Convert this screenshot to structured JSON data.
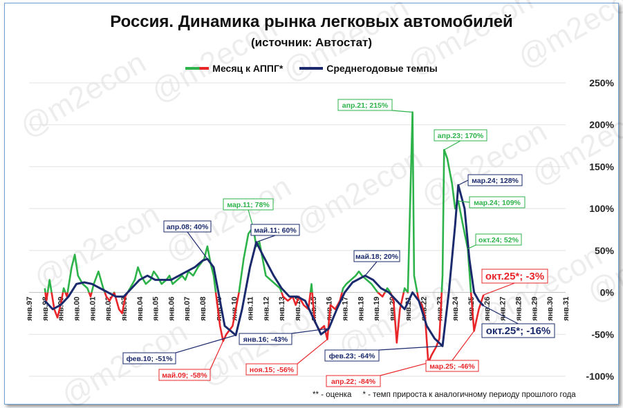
{
  "title": "Россия. Динамика рынка легковых автомобилей",
  "subtitle": "(источник: Автостат)",
  "watermark": "@m2econ",
  "legend": [
    {
      "label": "Месяц к АППГ*",
      "color": "#2db34a"
    },
    {
      "label": "Среднегодовые темпы",
      "color": "#1a2a6c"
    }
  ],
  "footnote": {
    "estimate": "** - оценка",
    "growth": "* - темп прироста к аналогичному периоду прошлого года"
  },
  "colors": {
    "monthly_pos": "#2db34a",
    "monthly_neg": "#e8262a",
    "average": "#1a2a6c"
  },
  "chart_data": {
    "type": "line",
    "ylim": [
      -100,
      250
    ],
    "yticks": [
      "-100%",
      "-50%",
      "0%",
      "50%",
      "100%",
      "150%",
      "200%",
      "250%"
    ],
    "ytick_values": [
      -100,
      -50,
      0,
      50,
      100,
      150,
      200,
      250
    ],
    "xticks": [
      "янв.97",
      "янв.98",
      "янв.99",
      "янв.00",
      "янв.01",
      "янв.02",
      "янв.03",
      "янв.04",
      "янв.05",
      "янв.06",
      "янв.07",
      "янв.08",
      "янв.09",
      "янв.10",
      "янв.11",
      "янв.12",
      "янв.13",
      "янв.14",
      "янв.15",
      "янв.16",
      "янв.17",
      "янв.18",
      "янв.19",
      "янв.20",
      "янв.21",
      "янв.22",
      "янв.23",
      "янв.24",
      "янв.25",
      "янв.26",
      "янв.27",
      "янв.28",
      "янв.29",
      "янв.30",
      "янв.31"
    ],
    "x_start": 1997,
    "x_end": 2031,
    "series": [
      {
        "name": "Месяц к АППГ*",
        "points": [
          [
            1998.0,
            5
          ],
          [
            1998.1,
            -10
          ],
          [
            1998.3,
            15
          ],
          [
            1998.6,
            -20
          ],
          [
            1998.8,
            -30
          ],
          [
            1999.0,
            -15
          ],
          [
            1999.2,
            5
          ],
          [
            1999.4,
            -5
          ],
          [
            1999.7,
            30
          ],
          [
            1999.9,
            45
          ],
          [
            2000.1,
            20
          ],
          [
            2000.4,
            10
          ],
          [
            2000.7,
            5
          ],
          [
            2000.9,
            -5
          ],
          [
            2001.1,
            10
          ],
          [
            2001.4,
            25
          ],
          [
            2001.7,
            5
          ],
          [
            2001.9,
            -5
          ],
          [
            2002.1,
            -10
          ],
          [
            2002.4,
            0
          ],
          [
            2002.7,
            -20
          ],
          [
            2002.9,
            -25
          ],
          [
            2003.1,
            -5
          ],
          [
            2003.4,
            5
          ],
          [
            2003.7,
            15
          ],
          [
            2003.9,
            30
          ],
          [
            2004.1,
            20
          ],
          [
            2004.4,
            10
          ],
          [
            2004.7,
            15
          ],
          [
            2004.9,
            25
          ],
          [
            2005.1,
            20
          ],
          [
            2005.4,
            10
          ],
          [
            2005.7,
            15
          ],
          [
            2005.9,
            20
          ],
          [
            2006.1,
            10
          ],
          [
            2006.4,
            15
          ],
          [
            2006.7,
            20
          ],
          [
            2006.9,
            15
          ],
          [
            2007.1,
            25
          ],
          [
            2007.4,
            20
          ],
          [
            2007.7,
            30
          ],
          [
            2007.9,
            35
          ],
          [
            2008.1,
            40
          ],
          [
            2008.3,
            55
          ],
          [
            2008.5,
            35
          ],
          [
            2008.7,
            20
          ],
          [
            2008.9,
            -10
          ],
          [
            2009.1,
            -40
          ],
          [
            2009.3,
            -58
          ],
          [
            2009.5,
            -50
          ],
          [
            2009.7,
            -45
          ],
          [
            2009.9,
            -40
          ],
          [
            2010.1,
            -20
          ],
          [
            2010.3,
            0
          ],
          [
            2010.6,
            40
          ],
          [
            2010.9,
            70
          ],
          [
            2011.2,
            78
          ],
          [
            2011.4,
            55
          ],
          [
            2011.6,
            60
          ],
          [
            2011.8,
            40
          ],
          [
            2012.0,
            20
          ],
          [
            2012.3,
            15
          ],
          [
            2012.6,
            10
          ],
          [
            2012.9,
            5
          ],
          [
            2013.1,
            -5
          ],
          [
            2013.4,
            -10
          ],
          [
            2013.7,
            -5
          ],
          [
            2013.9,
            -15
          ],
          [
            2014.1,
            -5
          ],
          [
            2014.4,
            -15
          ],
          [
            2014.7,
            -20
          ],
          [
            2014.9,
            10
          ],
          [
            2015.1,
            -35
          ],
          [
            2015.4,
            -45
          ],
          [
            2015.7,
            -40
          ],
          [
            2015.9,
            -56
          ],
          [
            2016.1,
            -15
          ],
          [
            2016.4,
            -20
          ],
          [
            2016.7,
            -10
          ],
          [
            2016.9,
            5
          ],
          [
            2017.1,
            10
          ],
          [
            2017.4,
            15
          ],
          [
            2017.7,
            20
          ],
          [
            2017.9,
            25
          ],
          [
            2018.1,
            20
          ],
          [
            2018.4,
            15
          ],
          [
            2018.7,
            10
          ],
          [
            2018.9,
            5
          ],
          [
            2019.1,
            0
          ],
          [
            2019.4,
            -5
          ],
          [
            2019.7,
            5
          ],
          [
            2019.9,
            0
          ],
          [
            2020.1,
            -10
          ],
          [
            2020.3,
            -60
          ],
          [
            2020.5,
            -20
          ],
          [
            2020.8,
            5
          ],
          [
            2021.0,
            0
          ],
          [
            2021.3,
            215
          ],
          [
            2021.4,
            20
          ],
          [
            2021.7,
            -10
          ],
          [
            2021.9,
            -15
          ],
          [
            2022.1,
            -30
          ],
          [
            2022.3,
            -84
          ],
          [
            2022.5,
            -75
          ],
          [
            2022.8,
            -65
          ],
          [
            2023.0,
            -55
          ],
          [
            2023.2,
            20
          ],
          [
            2023.3,
            170
          ],
          [
            2023.5,
            160
          ],
          [
            2023.8,
            130
          ],
          [
            2024.0,
            100
          ],
          [
            2024.2,
            109
          ],
          [
            2024.5,
            80
          ],
          [
            2024.8,
            52
          ],
          [
            2025.0,
            0
          ],
          [
            2025.2,
            -46
          ],
          [
            2025.5,
            -20
          ],
          [
            2025.8,
            -3
          ]
        ]
      },
      {
        "name": "Среднегодовые темпы",
        "points": [
          [
            1998.0,
            -10
          ],
          [
            1998.5,
            -20
          ],
          [
            1999.0,
            -15
          ],
          [
            1999.5,
            -5
          ],
          [
            2000.0,
            10
          ],
          [
            2000.5,
            12
          ],
          [
            2001.0,
            10
          ],
          [
            2001.5,
            5
          ],
          [
            2002.0,
            0
          ],
          [
            2002.5,
            -5
          ],
          [
            2003.0,
            -5
          ],
          [
            2003.5,
            5
          ],
          [
            2004.0,
            15
          ],
          [
            2004.5,
            20
          ],
          [
            2005.0,
            15
          ],
          [
            2005.5,
            15
          ],
          [
            2006.0,
            15
          ],
          [
            2006.5,
            20
          ],
          [
            2007.0,
            25
          ],
          [
            2007.5,
            30
          ],
          [
            2008.0,
            38
          ],
          [
            2008.3,
            40
          ],
          [
            2008.7,
            30
          ],
          [
            2009.0,
            0
          ],
          [
            2009.4,
            -40
          ],
          [
            2010.1,
            -51
          ],
          [
            2010.5,
            -20
          ],
          [
            2011.0,
            30
          ],
          [
            2011.4,
            60
          ],
          [
            2011.8,
            45
          ],
          [
            2012.5,
            20
          ],
          [
            2013.0,
            5
          ],
          [
            2013.5,
            -5
          ],
          [
            2014.0,
            -5
          ],
          [
            2014.5,
            -10
          ],
          [
            2015.0,
            -30
          ],
          [
            2015.5,
            -50
          ],
          [
            2016.0,
            -43
          ],
          [
            2016.5,
            -20
          ],
          [
            2017.0,
            0
          ],
          [
            2017.5,
            12
          ],
          [
            2018.3,
            20
          ],
          [
            2018.8,
            15
          ],
          [
            2019.3,
            5
          ],
          [
            2019.8,
            0
          ],
          [
            2020.3,
            -10
          ],
          [
            2020.8,
            -20
          ],
          [
            2021.3,
            0
          ],
          [
            2021.7,
            -10
          ],
          [
            2022.2,
            -40
          ],
          [
            2022.7,
            -55
          ],
          [
            2023.2,
            -64
          ],
          [
            2023.6,
            0
          ],
          [
            2024.0,
            80
          ],
          [
            2024.2,
            128
          ],
          [
            2024.6,
            100
          ],
          [
            2024.9,
            40
          ],
          [
            2025.2,
            0
          ],
          [
            2025.5,
            -10
          ],
          [
            2025.8,
            -16
          ]
        ]
      }
    ],
    "annotations": [
      {
        "text": "апр.08; 40%",
        "series": "avg"
      },
      {
        "text": "мар.11; 78%",
        "series": "monthly"
      },
      {
        "text": "май.11; 60%",
        "series": "avg"
      },
      {
        "text": "май.18; 20%",
        "series": "avg"
      },
      {
        "text": "апр.21; 215%",
        "series": "monthly"
      },
      {
        "text": "апр.23; 170%",
        "series": "monthly"
      },
      {
        "text": "мар.24; 128%",
        "series": "avg"
      },
      {
        "text": "мар.24; 109%",
        "series": "monthly"
      },
      {
        "text": "окт.24; 52%",
        "series": "monthly"
      },
      {
        "text": "окт.25*; -3%",
        "series": "monthly_neg"
      },
      {
        "text": "окт.25*; -16%",
        "series": "avg"
      },
      {
        "text": "фев.10; -51%",
        "series": "avg"
      },
      {
        "text": "май.09; -58%",
        "series": "monthly_neg"
      },
      {
        "text": "янв.16; -43%",
        "series": "avg"
      },
      {
        "text": "ноя.15; -56%",
        "series": "monthly_neg"
      },
      {
        "text": "фев.23; -64%",
        "series": "avg"
      },
      {
        "text": "апр.22; -84%",
        "series": "monthly_neg"
      },
      {
        "text": "мар.25; -46%",
        "series": "monthly_neg"
      }
    ]
  }
}
